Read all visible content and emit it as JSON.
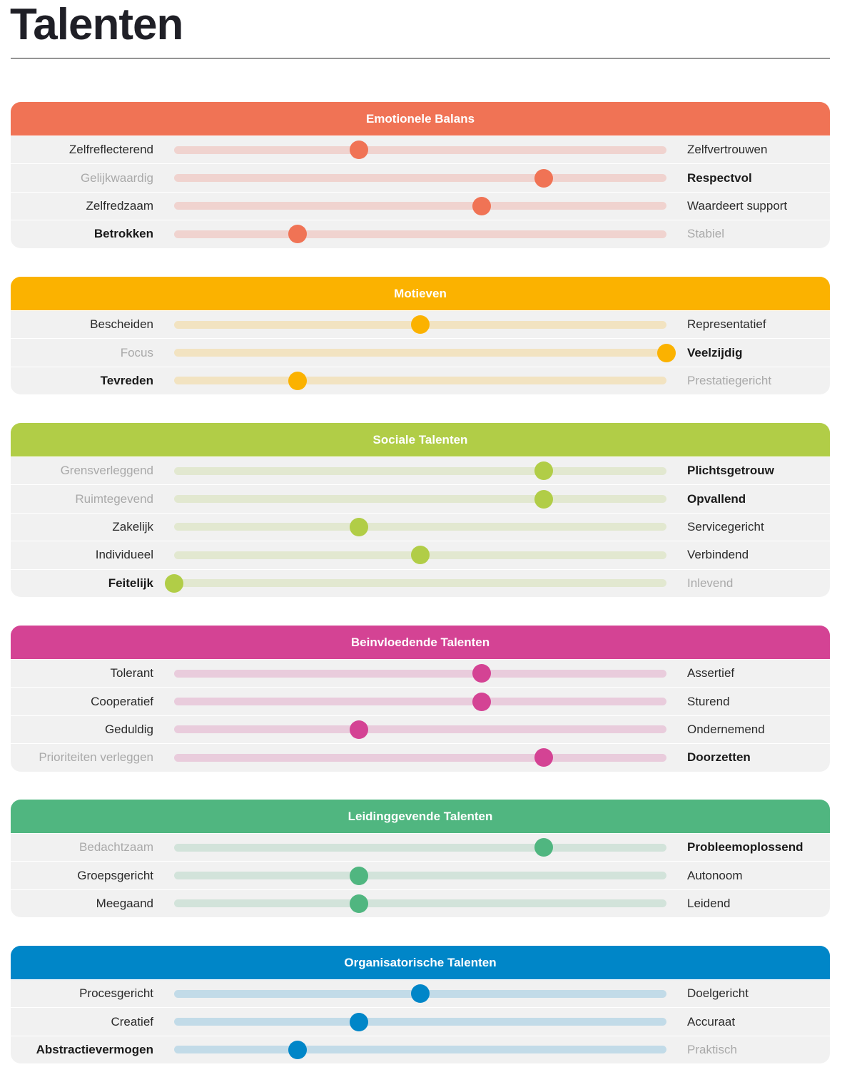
{
  "page_title": "Talenten",
  "sections": [
    {
      "title": "Emotionele Balans",
      "color": "#f07355",
      "track_color": "#f0d3cf",
      "rows": [
        {
          "left": "Zelfreflecterend",
          "right": "Zelfvertrouwen",
          "value": 0.375,
          "emphasis": "none"
        },
        {
          "left": "Gelijkwaardig",
          "right": "Respectvol",
          "value": 0.75,
          "emphasis": "right"
        },
        {
          "left": "Zelfredzaam",
          "right": "Waardeert support",
          "value": 0.625,
          "emphasis": "none"
        },
        {
          "left": "Betrokken",
          "right": "Stabiel",
          "value": 0.25,
          "emphasis": "left"
        }
      ]
    },
    {
      "title": "Motieven",
      "color": "#fbb200",
      "track_color": "#f2e3c1",
      "rows": [
        {
          "left": "Bescheiden",
          "right": "Representatief",
          "value": 0.5,
          "emphasis": "none"
        },
        {
          "left": "Focus",
          "right": "Veelzijdig",
          "value": 1.0,
          "emphasis": "right"
        },
        {
          "left": "Tevreden",
          "right": "Prestatiegericht",
          "value": 0.25,
          "emphasis": "left"
        }
      ]
    },
    {
      "title": "Sociale Talenten",
      "color": "#b1cd47",
      "track_color": "#e2e8d0",
      "rows": [
        {
          "left": "Grensverleggend",
          "right": "Plichtsgetrouw",
          "value": 0.75,
          "emphasis": "right"
        },
        {
          "left": "Ruimtegevend",
          "right": "Opvallend",
          "value": 0.75,
          "emphasis": "right"
        },
        {
          "left": "Zakelijk",
          "right": "Servicegericht",
          "value": 0.375,
          "emphasis": "none"
        },
        {
          "left": "Individueel",
          "right": "Verbindend",
          "value": 0.5,
          "emphasis": "none"
        },
        {
          "left": "Feitelijk",
          "right": "Inlevend",
          "value": 0.0,
          "emphasis": "left"
        }
      ]
    },
    {
      "title": "Beinvloedende Talenten",
      "color": "#d44394",
      "track_color": "#e9ccdc",
      "rows": [
        {
          "left": "Tolerant",
          "right": "Assertief",
          "value": 0.625,
          "emphasis": "none"
        },
        {
          "left": "Cooperatief",
          "right": "Sturend",
          "value": 0.625,
          "emphasis": "none"
        },
        {
          "left": "Geduldig",
          "right": "Ondernemend",
          "value": 0.375,
          "emphasis": "none"
        },
        {
          "left": "Prioriteiten verleggen",
          "right": "Doorzetten",
          "value": 0.75,
          "emphasis": "right"
        }
      ]
    },
    {
      "title": "Leidinggevende Talenten",
      "color": "#50b680",
      "track_color": "#d2e3da",
      "rows": [
        {
          "left": "Bedachtzaam",
          "right": "Probleemoplossend",
          "value": 0.75,
          "emphasis": "right"
        },
        {
          "left": "Groepsgericht",
          "right": "Autonoom",
          "value": 0.375,
          "emphasis": "none"
        },
        {
          "left": "Meegaand",
          "right": "Leidend",
          "value": 0.375,
          "emphasis": "none"
        }
      ]
    },
    {
      "title": "Organisatorische Talenten",
      "color": "#0086c8",
      "track_color": "#c2dbe8",
      "rows": [
        {
          "left": "Procesgericht",
          "right": "Doelgericht",
          "value": 0.5,
          "emphasis": "none"
        },
        {
          "left": "Creatief",
          "right": "Accuraat",
          "value": 0.375,
          "emphasis": "none"
        },
        {
          "left": "Abstractievermogen",
          "right": "Praktisch",
          "value": 0.25,
          "emphasis": "left"
        }
      ]
    }
  ]
}
